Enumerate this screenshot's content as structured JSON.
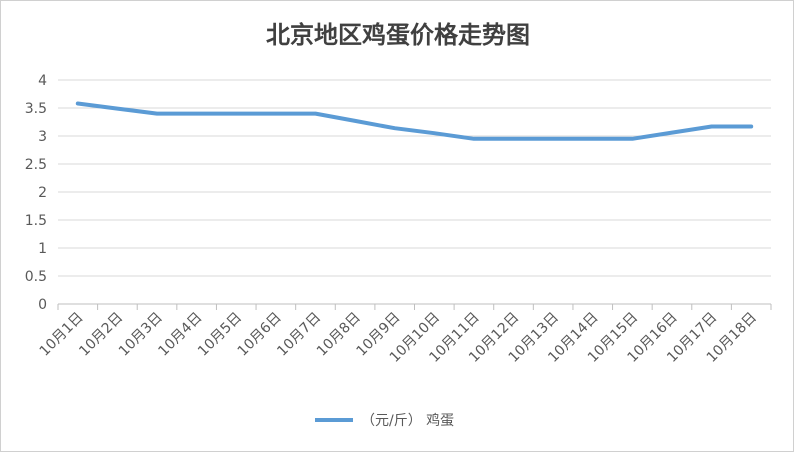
{
  "chart_data": {
    "type": "line",
    "title": "北京地区鸡蛋价格走势图",
    "categories": [
      "10月1日",
      "10月2日",
      "10月3日",
      "10月4日",
      "10月5日",
      "10月6日",
      "10月7日",
      "10月8日",
      "10月9日",
      "10月10日",
      "10月11日",
      "10月12日",
      "10月13日",
      "10月14日",
      "10月15日",
      "10月16日",
      "10月17日",
      "10月18日"
    ],
    "series": [
      {
        "name": "（元/斤） 鸡蛋",
        "color": "#5b9bd5",
        "values": [
          3.58,
          3.49,
          3.4,
          3.4,
          3.4,
          3.4,
          3.4,
          3.27,
          3.14,
          3.05,
          2.95,
          2.95,
          2.95,
          2.95,
          2.95,
          3.06,
          3.17,
          3.17
        ]
      }
    ],
    "ylim": [
      0,
      4
    ],
    "yticks": [
      "0",
      "0.5",
      "1",
      "1.5",
      "2",
      "2.5",
      "3",
      "3.5",
      "4"
    ],
    "grid": true,
    "legend": "bottom"
  }
}
